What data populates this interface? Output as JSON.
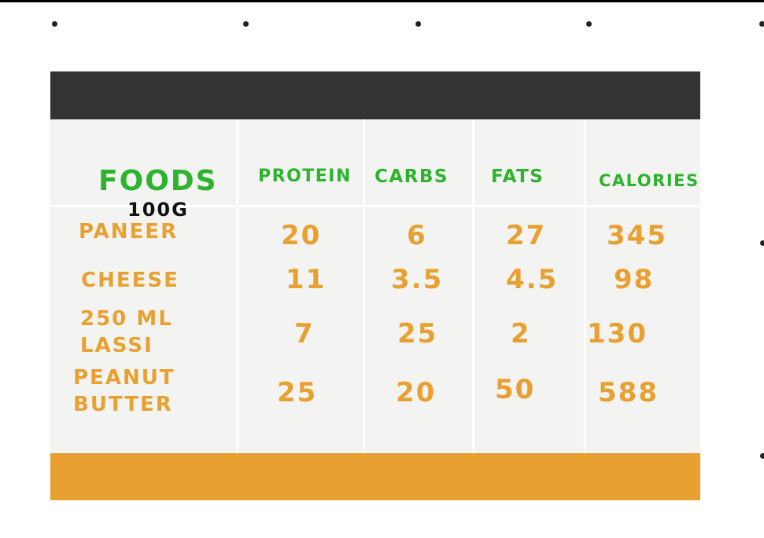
{
  "header": {
    "foods": "FOODS",
    "unit": "100G",
    "protein": "PROTEIN",
    "carbs": "CARBS",
    "fats": "FATS",
    "calories": "CALORIES"
  },
  "rows": [
    {
      "food": [
        "PANEER"
      ],
      "protein": "20",
      "carbs": "6",
      "fats": "27",
      "calories": "345"
    },
    {
      "food": [
        "CHEESE"
      ],
      "protein": "11",
      "carbs": "3.5",
      "fats": "4.5",
      "calories": "98"
    },
    {
      "food": [
        "250 ML",
        "LASSI"
      ],
      "protein": "7",
      "carbs": "25",
      "fats": "2",
      "calories": "130"
    },
    {
      "food": [
        "PEANUT",
        "BUTTER"
      ],
      "protein": "25",
      "carbs": "20",
      "fats": "50",
      "calories": "588"
    }
  ],
  "colors": {
    "header_band": "#333333",
    "footer_band": "#e8a030",
    "heading_text": "#2db32d",
    "value_text": "#e8a030",
    "table_background": "#f3f4f2"
  }
}
